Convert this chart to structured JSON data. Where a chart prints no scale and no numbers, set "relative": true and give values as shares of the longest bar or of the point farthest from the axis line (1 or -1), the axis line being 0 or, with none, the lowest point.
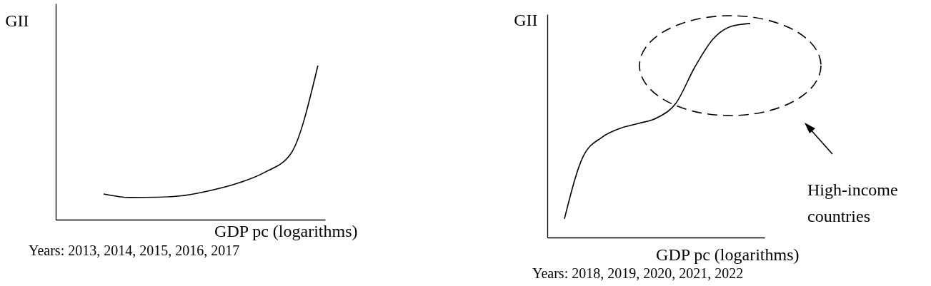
{
  "chart_data": [
    {
      "type": "line",
      "relative": true,
      "ylabel": "GII",
      "xlabel": "GDP pc (logarithms)",
      "color": "#000000",
      "categories": [
        null,
        null,
        null,
        null,
        null,
        null,
        null,
        null,
        null
      ],
      "values": [
        0.167,
        0.144,
        0.146,
        0.157,
        0.19,
        0.236,
        0.306,
        0.431,
        1
      ],
      "annotations": [
        "Years: 2013, 2014, 2015, 2016, 2017"
      ]
    },
    {
      "type": "line",
      "relative": true,
      "ylabel": "GII",
      "xlabel": "GDP pc (logarithms)",
      "color": "#000000",
      "categories": [
        null,
        null,
        null,
        null,
        null,
        null,
        null,
        null,
        null,
        null,
        null
      ],
      "values": [
        0.087,
        0.377,
        0.467,
        0.51,
        0.533,
        0.56,
        0.627,
        0.793,
        0.927,
        0.987,
        1
      ],
      "annotations": [
        "High-income countries",
        "Years: 2018, 2019, 2020, 2021, 2022"
      ]
    }
  ]
}
